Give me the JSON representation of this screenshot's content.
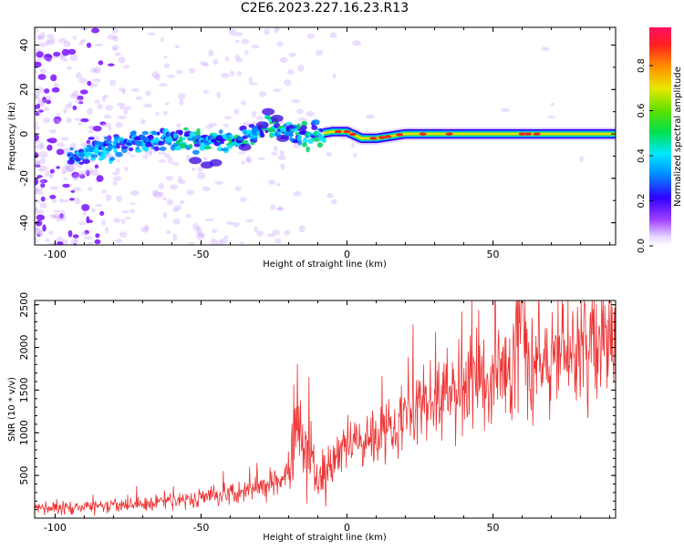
{
  "title": "C2E6.2023.227.16.23.R13",
  "chart_data": [
    {
      "type": "heatmap",
      "xlabel": "Height of straight line (km)",
      "ylabel": "Frequency (Hz)",
      "xlim": [
        -107,
        92
      ],
      "ylim": [
        -50,
        48
      ],
      "xticks": [
        -100,
        -50,
        0,
        50
      ],
      "xtick_labels": [
        "-100",
        "-50",
        "0",
        "50"
      ],
      "yticks": [
        -40,
        -20,
        0,
        20,
        40
      ],
      "ytick_labels": [
        "-40",
        "-20",
        "0",
        "20",
        "40"
      ],
      "ridge": {
        "x": [
          -93,
          -85,
          -75,
          -65,
          -55,
          -45,
          -38,
          -32,
          -26,
          -20,
          -15,
          -10,
          -5,
          0,
          5,
          10,
          20,
          40,
          60,
          92
        ],
        "y": [
          -10,
          -7,
          -4,
          -3,
          -2,
          -3,
          -4,
          0,
          5,
          2,
          -1,
          0,
          1,
          1,
          -2,
          -2,
          0,
          0,
          0,
          0
        ]
      },
      "colorbar": {
        "label": "Normalized spectral amplitude",
        "range": [
          0,
          0.97
        ],
        "ticks": [
          0.0,
          0.2,
          0.4,
          0.6,
          0.8
        ],
        "tick_labels": [
          "0.0",
          "0.2",
          "0.4",
          "0.6",
          "0.8"
        ]
      },
      "grid": false
    },
    {
      "type": "line",
      "xlabel": "Height of straight line (km)",
      "ylabel": "SNR (10 * v/v)",
      "xlim": [
        -107,
        92
      ],
      "ylim": [
        0,
        2550
      ],
      "xticks": [
        -100,
        -50,
        0,
        50
      ],
      "xtick_labels": [
        "-100",
        "-50",
        "0",
        "50"
      ],
      "yticks": [
        500,
        1000,
        1500,
        2000,
        2500
      ],
      "ytick_labels": [
        "500",
        "1000",
        "1500",
        "2000",
        "2500"
      ],
      "color": "#ee3333",
      "series": [
        {
          "x": [
            -107,
            -100,
            -90,
            -80,
            -70,
            -60,
            -50,
            -40,
            -35,
            -30,
            -25,
            -20,
            -17,
            -15,
            -12,
            -10,
            -8,
            -5,
            0,
            10,
            20,
            30,
            40,
            50,
            55,
            58,
            60,
            62,
            65,
            70,
            80,
            92
          ],
          "y": [
            110,
            120,
            130,
            140,
            170,
            200,
            240,
            300,
            340,
            380,
            420,
            520,
            1100,
            650,
            800,
            350,
            500,
            650,
            850,
            1000,
            1200,
            1400,
            1550,
            1650,
            1700,
            1900,
            2500,
            2000,
            1800,
            1900,
            2000,
            2050
          ]
        }
      ],
      "grid": false
    }
  ]
}
